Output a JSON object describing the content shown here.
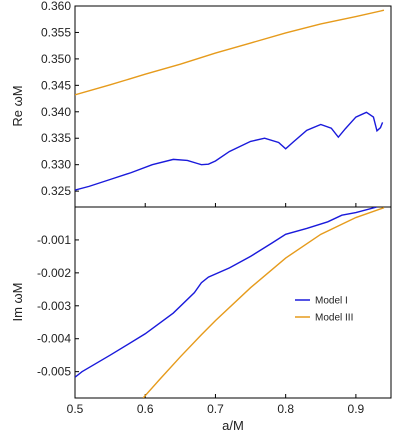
{
  "chart_data": [
    {
      "type": "line",
      "panel": "top",
      "xlabel": "",
      "ylabel": "Re ωM",
      "xlim": [
        0.5,
        0.95
      ],
      "ylim": [
        0.322,
        0.36
      ],
      "y_ticks": [
        "0.325",
        "0.330",
        "0.335",
        "0.340",
        "0.345",
        "0.350",
        "0.355",
        "0.360"
      ],
      "y_tick_values": [
        0.325,
        0.33,
        0.335,
        0.34,
        0.345,
        0.35,
        0.355,
        0.36
      ],
      "grid": false,
      "series": [
        {
          "name": "Model I",
          "color": "#1a1adb",
          "points": [
            [
              0.5,
              0.3252
            ],
            [
              0.52,
              0.3259
            ],
            [
              0.55,
              0.3272
            ],
            [
              0.58,
              0.3285
            ],
            [
              0.61,
              0.33
            ],
            [
              0.64,
              0.331
            ],
            [
              0.66,
              0.3308
            ],
            [
              0.675,
              0.3302
            ],
            [
              0.68,
              0.33
            ],
            [
              0.69,
              0.3301
            ],
            [
              0.7,
              0.3307
            ],
            [
              0.72,
              0.3325
            ],
            [
              0.75,
              0.3344
            ],
            [
              0.77,
              0.335
            ],
            [
              0.79,
              0.3342
            ],
            [
              0.8,
              0.333
            ],
            [
              0.81,
              0.3342
            ],
            [
              0.83,
              0.3365
            ],
            [
              0.85,
              0.3376
            ],
            [
              0.865,
              0.3369
            ],
            [
              0.875,
              0.3352
            ],
            [
              0.885,
              0.3368
            ],
            [
              0.9,
              0.339
            ],
            [
              0.915,
              0.3399
            ],
            [
              0.925,
              0.339
            ],
            [
              0.93,
              0.3364
            ],
            [
              0.935,
              0.337
            ],
            [
              0.938,
              0.338
            ]
          ]
        },
        {
          "name": "Model III",
          "color": "#e69b1c",
          "points": [
            [
              0.5,
              0.3432
            ],
            [
              0.55,
              0.3451
            ],
            [
              0.6,
              0.3471
            ],
            [
              0.65,
              0.349
            ],
            [
              0.7,
              0.3511
            ],
            [
              0.75,
              0.353
            ],
            [
              0.8,
              0.3549
            ],
            [
              0.85,
              0.3566
            ],
            [
              0.9,
              0.358
            ],
            [
              0.94,
              0.3592
            ]
          ]
        }
      ]
    },
    {
      "type": "line",
      "panel": "bottom",
      "xlabel": "a/M",
      "ylabel": "Im ωM",
      "xlim": [
        0.5,
        0.95
      ],
      "ylim": [
        -0.0058,
        0.0
      ],
      "x_ticks": [
        "0.5",
        "0.6",
        "0.7",
        "0.8",
        "0.9"
      ],
      "x_tick_values": [
        0.5,
        0.6,
        0.7,
        0.8,
        0.9
      ],
      "y_ticks": [
        "-0.005",
        "-0.004",
        "-0.003",
        "-0.002",
        "-0.001"
      ],
      "y_tick_values": [
        -0.005,
        -0.004,
        -0.003,
        -0.002,
        -0.001
      ],
      "grid": false,
      "legend_position": "center-right",
      "series": [
        {
          "name": "Model I",
          "color": "#1a1adb",
          "points": [
            [
              0.5,
              -0.00517
            ],
            [
              0.51,
              -0.005
            ],
            [
              0.55,
              -0.0045
            ],
            [
              0.6,
              -0.00385
            ],
            [
              0.64,
              -0.00322
            ],
            [
              0.67,
              -0.0026
            ],
            [
              0.68,
              -0.0023
            ],
            [
              0.69,
              -0.00213
            ],
            [
              0.72,
              -0.00185
            ],
            [
              0.75,
              -0.0015
            ],
            [
              0.78,
              -0.0011
            ],
            [
              0.8,
              -0.00083
            ],
            [
              0.83,
              -0.00065
            ],
            [
              0.86,
              -0.00045
            ],
            [
              0.88,
              -0.00025
            ],
            [
              0.9,
              -0.00017
            ],
            [
              0.93,
              -0.0
            ]
          ]
        },
        {
          "name": "Model III",
          "color": "#e69b1c",
          "points": [
            [
              0.597,
              -0.0058
            ],
            [
              0.62,
              -0.00525
            ],
            [
              0.65,
              -0.00455
            ],
            [
              0.68,
              -0.00388
            ],
            [
              0.7,
              -0.00345
            ],
            [
              0.75,
              -0.00245
            ],
            [
              0.8,
              -0.00155
            ],
            [
              0.85,
              -0.00083
            ],
            [
              0.9,
              -0.00032
            ],
            [
              0.94,
              -2e-05
            ]
          ]
        }
      ]
    }
  ]
}
